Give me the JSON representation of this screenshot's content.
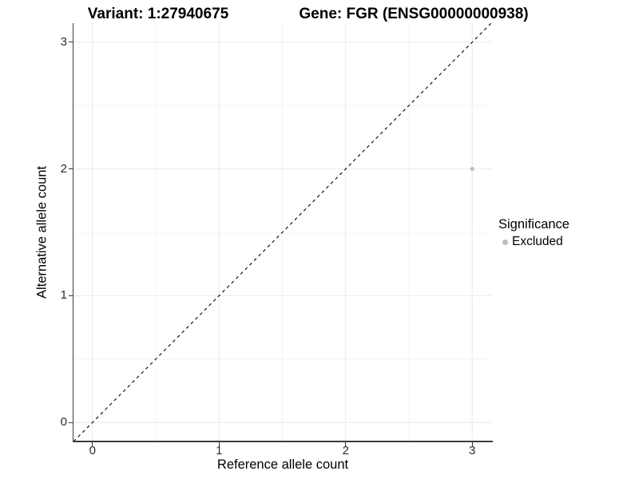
{
  "titles": {
    "left": "Variant: 1:27940675",
    "right": "Gene: FGR (ENSG00000000938)"
  },
  "chart_data": {
    "type": "scatter",
    "title_left": "Variant: 1:27940675",
    "title_right": "Gene: FGR (ENSG00000000938)",
    "xlabel": "Reference allele count",
    "ylabel": "Alternative allele count",
    "xlim": [
      -0.15,
      3.15
    ],
    "ylim": [
      -0.15,
      3.15
    ],
    "x_major_ticks": [
      0,
      1,
      2,
      3
    ],
    "y_major_ticks": [
      0,
      1,
      2,
      3
    ],
    "x_minor_ticks": [
      0.5,
      1.5,
      2.5
    ],
    "y_minor_ticks": [
      0.5,
      1.5,
      2.5
    ],
    "grid": true,
    "reference_line": {
      "style": "dashed",
      "from": [
        -0.15,
        -0.15
      ],
      "to": [
        3.15,
        3.15
      ],
      "color": "#000000"
    },
    "series": [
      {
        "name": "Excluded",
        "color": "#bebebe",
        "point_radius": 2.6,
        "points": [
          {
            "x": 3,
            "y": 2
          }
        ]
      }
    ],
    "legend": {
      "title": "Significance",
      "position": "right",
      "entries": [
        {
          "label": "Excluded",
          "color": "#bebebe"
        }
      ]
    }
  },
  "colors": {
    "background": "#ffffff",
    "grid_major": "#e9e9e9",
    "grid_minor": "#f4f4f4",
    "axis_line": "#3c3c3c",
    "tick_mark": "#333333",
    "point": "#bebebe",
    "text": "#000000"
  }
}
